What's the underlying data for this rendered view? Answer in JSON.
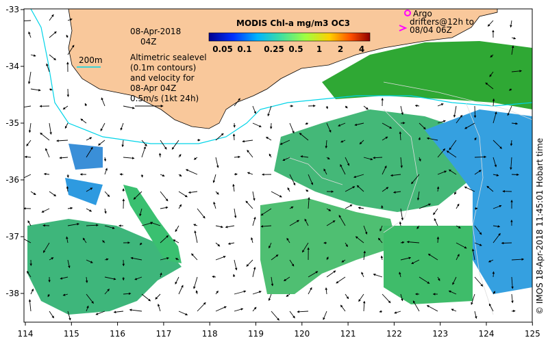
{
  "map": {
    "date": "08-Apr-2018",
    "time": "04Z",
    "isobath_label": "200m",
    "notes": [
      "Altimetric sealevel",
      "(0.1m contours)",
      "and velocity for",
      "08-Apr 04Z",
      "0.5m/s (1kt 24h)"
    ],
    "colorbar": {
      "title": "MODIS Chl-a mg/m3 OC3",
      "ticks": [
        "0.05",
        "0.1",
        "0.25",
        "0.5",
        "1",
        "2",
        "4"
      ]
    },
    "argo_legend": [
      "Argo",
      "drifters@12h to",
      "08/04 06Z"
    ],
    "credit": "© IMOS 18-Apr-2018 11:45:01 Hobart time",
    "x_ticks": [
      "114",
      "115",
      "116",
      "117",
      "118",
      "119",
      "120",
      "121",
      "122",
      "123",
      "124",
      "125"
    ],
    "y_ticks": [
      "-33",
      "-34",
      "-35",
      "-36",
      "-37",
      "-38"
    ],
    "colors": {
      "land": "#f9c89b",
      "ocean_no_data": "#ffffff",
      "isobath": "#00d4e8",
      "argo_marker": "#ff00ff",
      "chl_low": "#1e6fd8",
      "chl_mid": "#44b878",
      "chl_high": "#2fa834"
    }
  }
}
